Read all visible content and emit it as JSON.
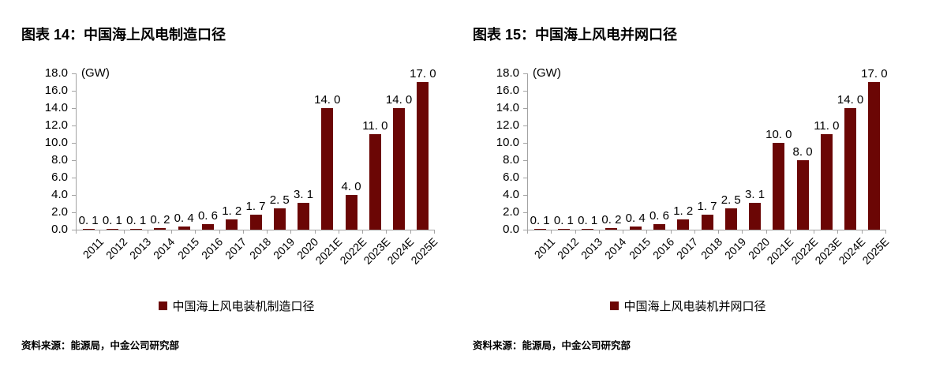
{
  "colors": {
    "bar": "#6B0605",
    "axis": "#A3A3A3",
    "text": "#000000",
    "background": "#ffffff"
  },
  "chart_data": [
    {
      "type": "bar",
      "title": "图表 14：中国海上风电制造口径",
      "ylabel": "(GW)",
      "xlabel": "",
      "categories": [
        "2011",
        "2012",
        "2013",
        "2014",
        "2015",
        "2016",
        "2017",
        "2018",
        "2019",
        "2020",
        "2021E",
        "2022E",
        "2023E",
        "2024E",
        "2025E"
      ],
      "series": [
        {
          "name": "中国海上风电装机制造口径",
          "values": [
            0.1,
            0.1,
            0.1,
            0.2,
            0.4,
            0.6,
            1.2,
            1.7,
            2.5,
            3.1,
            14.0,
            4.0,
            11.0,
            14.0,
            17.0
          ],
          "value_labels": [
            "0. 1",
            "0. 1",
            "0. 1",
            "0. 2",
            "0. 4",
            "0. 6",
            "1. 2",
            "1. 7",
            "2. 5",
            "3. 1",
            "14. 0",
            "4. 0",
            "11. 0",
            "14. 0",
            "17. 0"
          ]
        }
      ],
      "ylim": [
        0,
        18
      ],
      "ytick_step": 2,
      "ytick_labels": [
        "18.0",
        "16.0",
        "14.0",
        "12.0",
        "10.0",
        "8.0",
        "6.0",
        "4.0",
        "2.0",
        "0.0"
      ],
      "grid": false,
      "legend_position": "bottom",
      "source": "资料来源：能源局，中金公司研究部"
    },
    {
      "type": "bar",
      "title": "图表 15：中国海上风电并网口径",
      "ylabel": "(GW)",
      "xlabel": "",
      "categories": [
        "2011",
        "2012",
        "2013",
        "2014",
        "2015",
        "2016",
        "2017",
        "2018",
        "2019",
        "2020",
        "2021E",
        "2022E",
        "2023E",
        "2024E",
        "2025E"
      ],
      "series": [
        {
          "name": "中国海上风电装机并网口径",
          "values": [
            0.1,
            0.1,
            0.1,
            0.2,
            0.4,
            0.6,
            1.2,
            1.7,
            2.5,
            3.1,
            10.0,
            8.0,
            11.0,
            14.0,
            17.0
          ],
          "value_labels": [
            "0. 1",
            "0. 1",
            "0. 1",
            "0. 2",
            "0. 4",
            "0. 6",
            "1. 2",
            "1. 7",
            "2. 5",
            "3. 1",
            "10. 0",
            "8. 0",
            "11. 0",
            "14. 0",
            "17. 0"
          ]
        }
      ],
      "ylim": [
        0,
        18
      ],
      "ytick_step": 2,
      "ytick_labels": [
        "18.0",
        "16.0",
        "14.0",
        "12.0",
        "10.0",
        "8.0",
        "6.0",
        "4.0",
        "2.0",
        "0.0"
      ],
      "grid": false,
      "legend_position": "bottom",
      "source": "资料来源：能源局，中金公司研究部"
    }
  ]
}
